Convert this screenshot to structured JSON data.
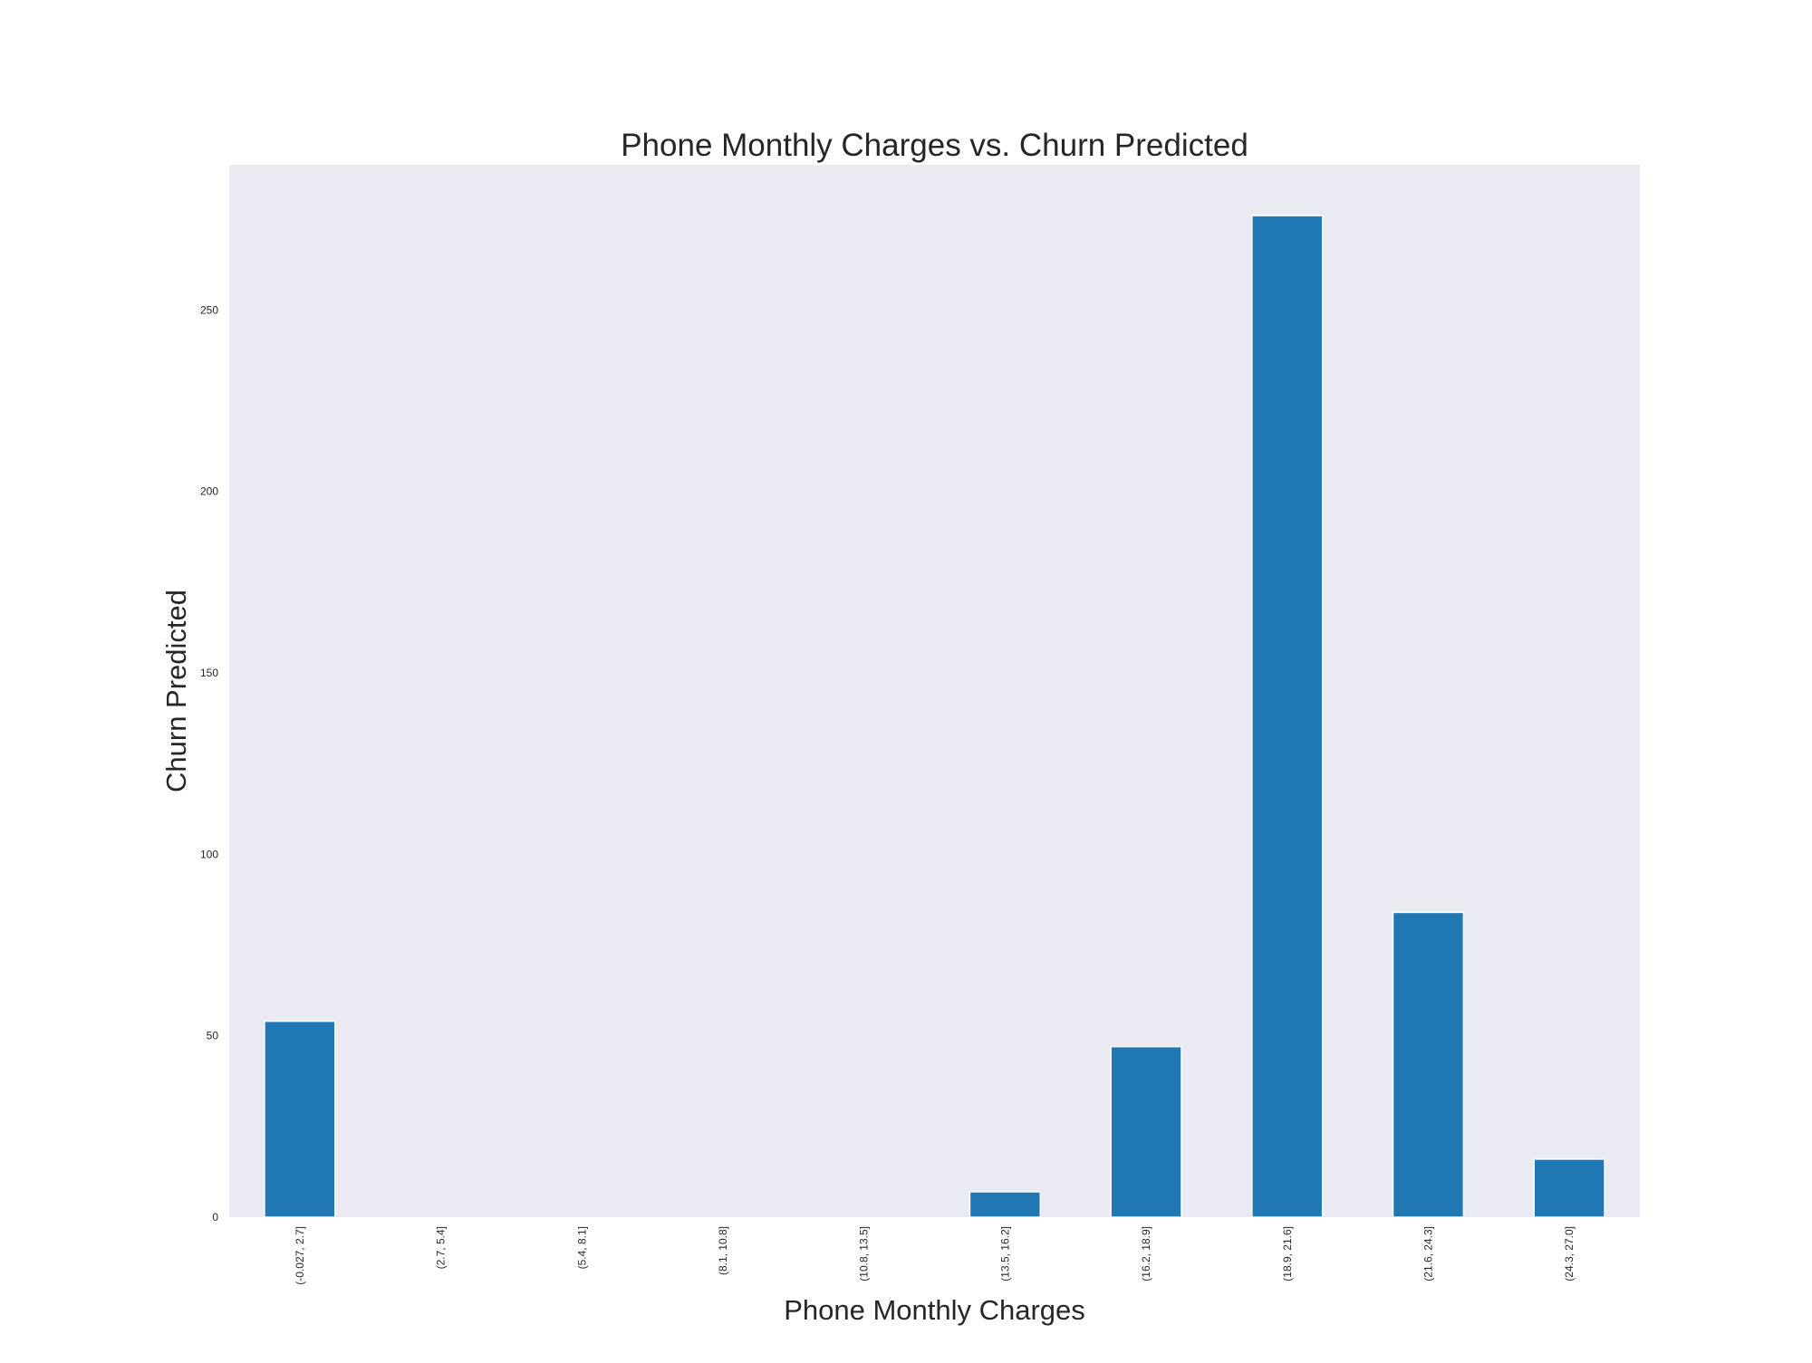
{
  "chart_data": {
    "type": "bar",
    "title": "Phone Monthly Charges vs. Churn Predicted",
    "xlabel": "Phone Monthly Charges",
    "ylabel": "Churn Predicted",
    "categories": [
      "(-0.027, 2.7]",
      "(2.7, 5.4]",
      "(5.4, 8.1]",
      "(8.1, 10.8]",
      "(10.8, 13.5]",
      "(13.5, 16.2]",
      "(16.2, 18.9]",
      "(18.9, 21.6]",
      "(21.6, 24.3]",
      "(24.3, 27.0]"
    ],
    "values": [
      54,
      0,
      0,
      0,
      0,
      7,
      47,
      276,
      84,
      16
    ],
    "ylim": [
      0,
      290
    ],
    "yticks": [
      0,
      50,
      100,
      150,
      200,
      250
    ],
    "grid": false,
    "colors": {
      "bar": "#1f77b4",
      "plot_background": "#eaeaf2",
      "text": "#262626"
    }
  }
}
